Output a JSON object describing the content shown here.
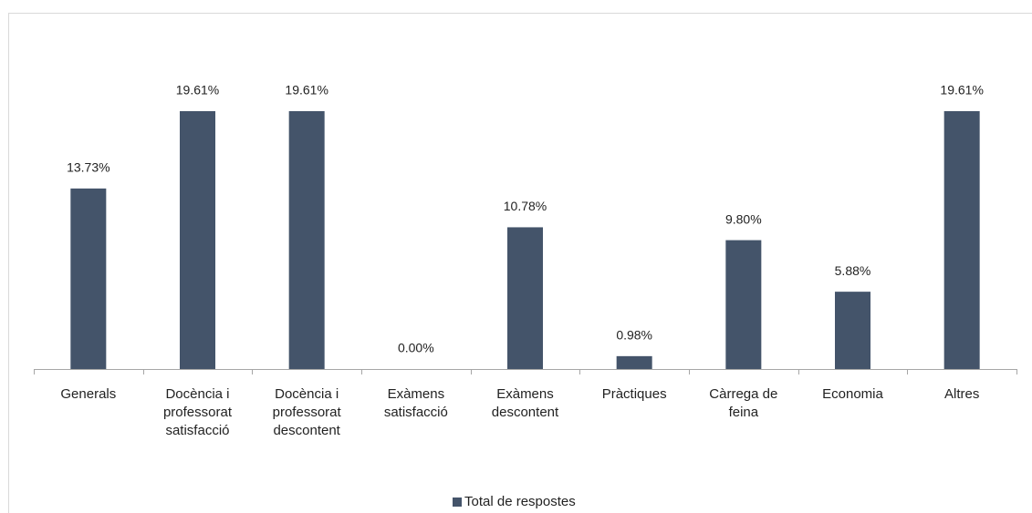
{
  "chart_data": {
    "type": "bar",
    "categories": [
      "Generals",
      "Docència i professorat satisfacció",
      "Docència i professorat descontent",
      "Exàmens satisfacció",
      "Exàmens descontent",
      "Pràctiques",
      "Càrrega de feina",
      "Economia",
      "Altres"
    ],
    "series": [
      {
        "name": "Total de respostes",
        "color": "#44546a",
        "values": [
          13.73,
          19.61,
          19.61,
          0,
          10.78,
          0.98,
          9.8,
          5.88,
          19.61
        ],
        "value_labels": [
          "13.73%",
          "19.61%",
          "19.61%",
          "0.00%",
          "10.78%",
          "0.98%",
          "9.80%",
          "5.88%",
          "19.61%"
        ]
      }
    ],
    "legend": "bottom"
  }
}
